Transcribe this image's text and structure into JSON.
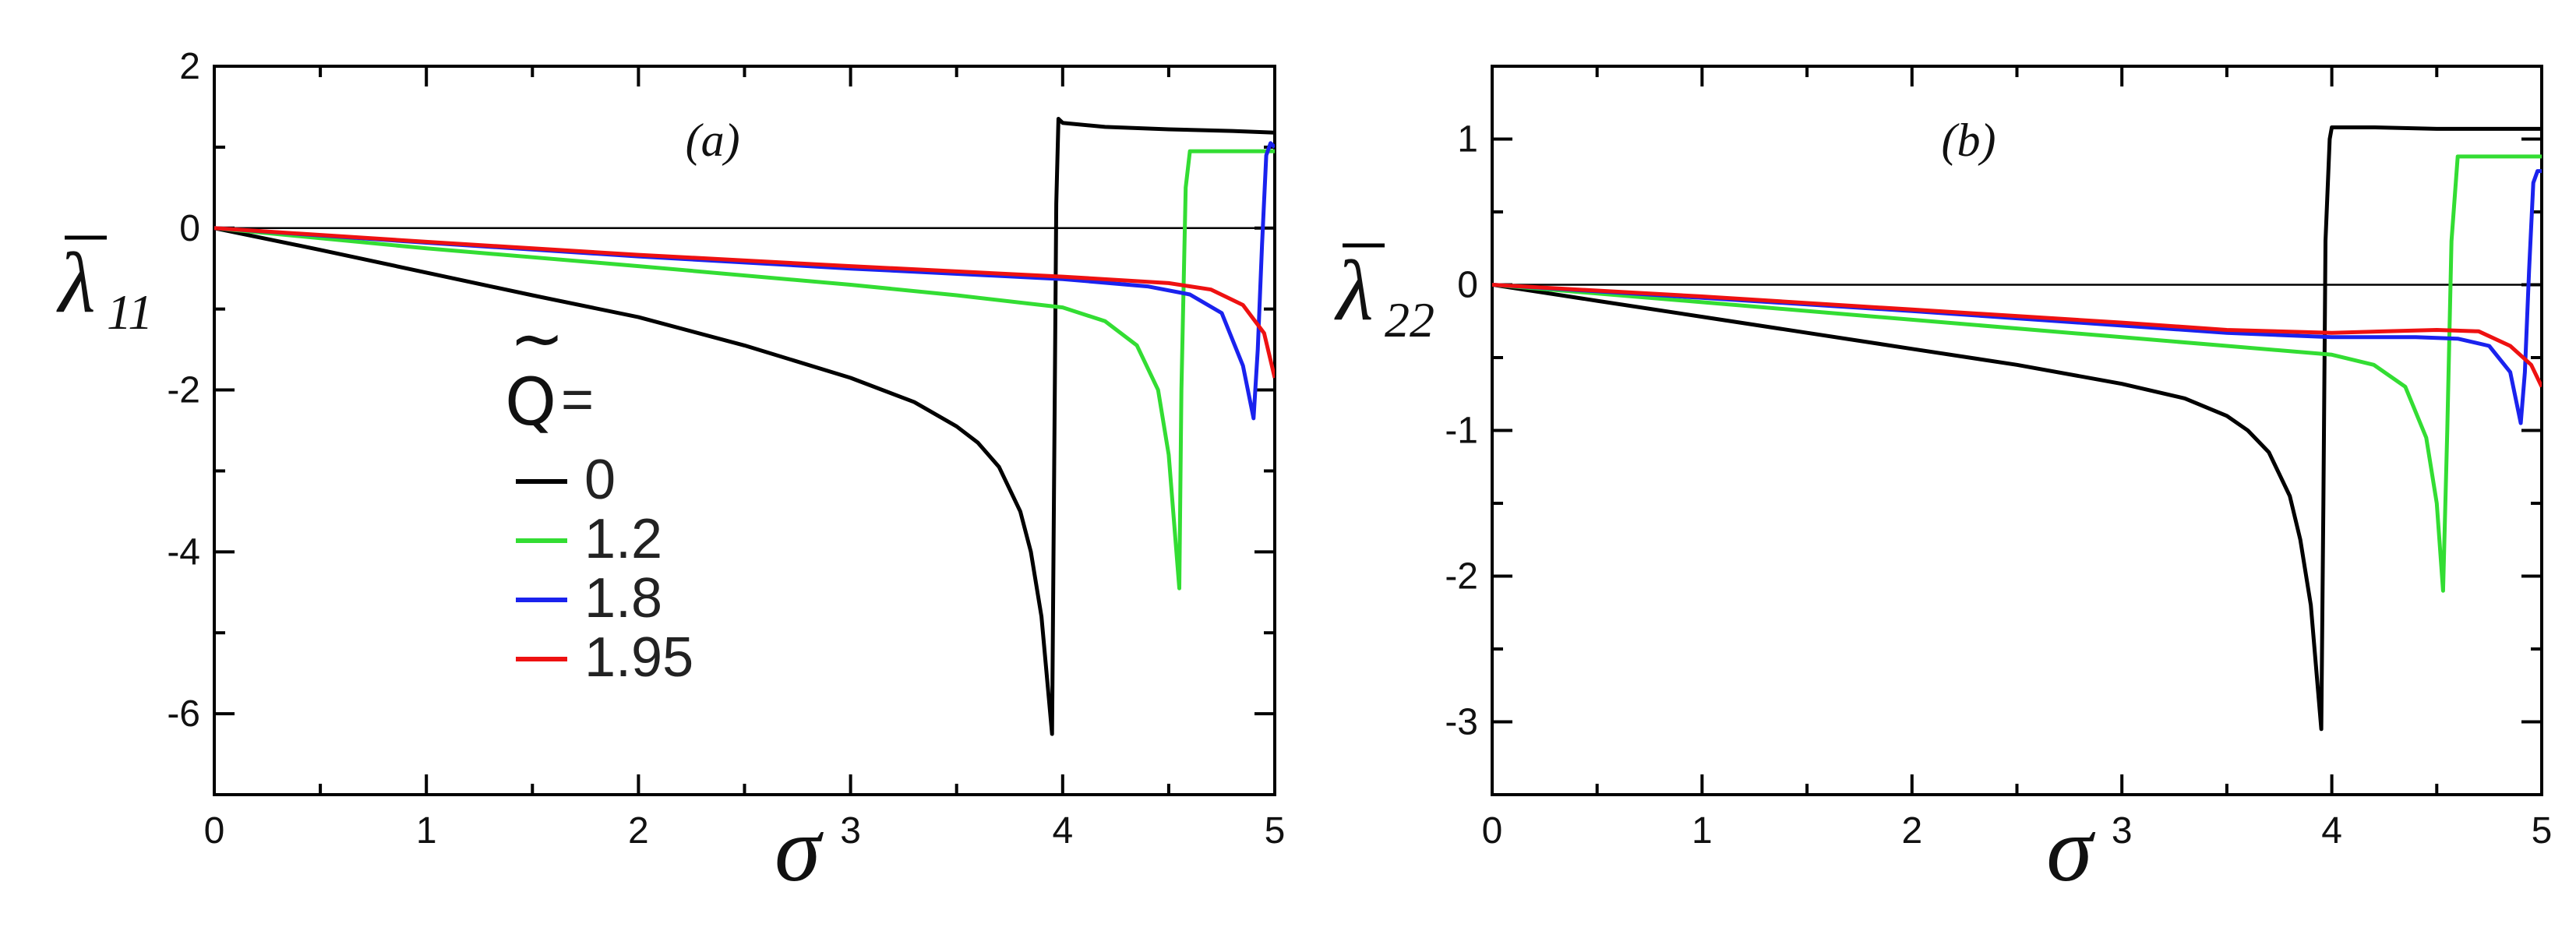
{
  "chart_data": [
    {
      "type": "line",
      "panel_label": "(a)",
      "xlabel": "σ",
      "ylabel_symbol": "λ",
      "ylabel_subscript": "11",
      "xlim": [
        0,
        5
      ],
      "ylim": [
        -7,
        2
      ],
      "xticks": [
        0,
        1,
        2,
        3,
        4,
        5
      ],
      "yticks": [
        2,
        0,
        -2,
        -4,
        -6
      ],
      "x_minor_step": 0.5,
      "y_minor_step": 1,
      "zero_line": true,
      "legend": {
        "title_symbol": "Q",
        "title_suffix": "=",
        "placement": "center-left",
        "entries": [
          "0",
          "1.2",
          "1.8",
          "1.95"
        ]
      },
      "series": [
        {
          "name": "0",
          "color": "#000000",
          "x": [
            0,
            0.5,
            1,
            1.5,
            2,
            2.5,
            3,
            3.3,
            3.5,
            3.6,
            3.7,
            3.8,
            3.85,
            3.9,
            3.95,
            3.96,
            3.97,
            3.98,
            4.0,
            4.2,
            4.5,
            4.8,
            5.0
          ],
          "y": [
            0,
            -0.27,
            -0.55,
            -0.83,
            -1.1,
            -1.45,
            -1.85,
            -2.15,
            -2.45,
            -2.65,
            -2.95,
            -3.5,
            -4.0,
            -4.8,
            -6.25,
            -3.0,
            0.3,
            1.35,
            1.3,
            1.25,
            1.22,
            1.2,
            1.18
          ]
        },
        {
          "name": "1.2",
          "color": "#33dd33",
          "x": [
            0,
            1,
            2,
            3,
            3.5,
            4.0,
            4.2,
            4.35,
            4.45,
            4.5,
            4.55,
            4.56,
            4.58,
            4.6,
            4.8,
            5.0
          ],
          "y": [
            0,
            -0.25,
            -0.47,
            -0.7,
            -0.83,
            -0.98,
            -1.15,
            -1.45,
            -2.0,
            -2.8,
            -4.45,
            -2.0,
            0.5,
            0.95,
            0.95,
            0.95
          ]
        },
        {
          "name": "1.8",
          "color": "#1a22ee",
          "x": [
            0,
            1,
            2,
            3,
            4,
            4.4,
            4.6,
            4.75,
            4.85,
            4.9,
            4.92,
            4.94,
            4.96,
            4.98,
            5.0
          ],
          "y": [
            0,
            -0.18,
            -0.35,
            -0.5,
            -0.63,
            -0.72,
            -0.82,
            -1.05,
            -1.7,
            -2.35,
            -1.5,
            -0.2,
            0.9,
            1.05,
            1.0
          ]
        },
        {
          "name": "1.95",
          "color": "#ee1111",
          "x": [
            0,
            1,
            2,
            3,
            4,
            4.5,
            4.7,
            4.85,
            4.95,
            5.0
          ],
          "y": [
            0,
            -0.17,
            -0.33,
            -0.47,
            -0.6,
            -0.68,
            -0.76,
            -0.95,
            -1.3,
            -1.85
          ]
        }
      ]
    },
    {
      "type": "line",
      "panel_label": "(b)",
      "xlabel": "σ",
      "ylabel_symbol": "λ",
      "ylabel_subscript": "22",
      "xlim": [
        0,
        5
      ],
      "ylim": [
        -3.5,
        1.5
      ],
      "xticks": [
        0,
        1,
        2,
        3,
        4,
        5
      ],
      "yticks": [
        1,
        0,
        -1,
        -2,
        -3
      ],
      "x_minor_step": 0.5,
      "y_minor_step": 0.5,
      "zero_line": true,
      "series": [
        {
          "name": "0",
          "color": "#000000",
          "x": [
            0,
            0.5,
            1,
            1.5,
            2,
            2.5,
            3,
            3.3,
            3.5,
            3.6,
            3.7,
            3.8,
            3.85,
            3.9,
            3.95,
            3.96,
            3.97,
            3.99,
            4.0,
            4.2,
            4.5,
            4.8,
            5.0
          ],
          "y": [
            0,
            -0.11,
            -0.22,
            -0.33,
            -0.44,
            -0.55,
            -0.68,
            -0.78,
            -0.9,
            -1.0,
            -1.15,
            -1.45,
            -1.75,
            -2.2,
            -3.05,
            -1.5,
            0.3,
            1.0,
            1.08,
            1.08,
            1.07,
            1.07,
            1.07
          ]
        },
        {
          "name": "1.2",
          "color": "#33dd33",
          "x": [
            0,
            1,
            2,
            3,
            3.5,
            4.0,
            4.2,
            4.35,
            4.45,
            4.5,
            4.53,
            4.55,
            4.57,
            4.6,
            4.8,
            5.0
          ],
          "y": [
            0,
            -0.12,
            -0.24,
            -0.36,
            -0.42,
            -0.48,
            -0.55,
            -0.7,
            -1.05,
            -1.5,
            -2.1,
            -1.0,
            0.3,
            0.88,
            0.88,
            0.88
          ]
        },
        {
          "name": "1.8",
          "color": "#1a22ee",
          "x": [
            0,
            1,
            2,
            3,
            3.5,
            4,
            4.4,
            4.6,
            4.75,
            4.85,
            4.9,
            4.92,
            4.94,
            4.96,
            4.98,
            5.0
          ],
          "y": [
            0,
            -0.09,
            -0.18,
            -0.28,
            -0.33,
            -0.36,
            -0.36,
            -0.37,
            -0.42,
            -0.6,
            -0.95,
            -0.6,
            0.1,
            0.7,
            0.78,
            0.78
          ]
        },
        {
          "name": "1.95",
          "color": "#ee1111",
          "x": [
            0,
            1,
            2,
            3,
            3.5,
            4,
            4.5,
            4.7,
            4.85,
            4.95,
            5.0
          ],
          "y": [
            0,
            -0.08,
            -0.17,
            -0.26,
            -0.31,
            -0.33,
            -0.31,
            -0.32,
            -0.42,
            -0.55,
            -0.7
          ]
        }
      ]
    }
  ]
}
